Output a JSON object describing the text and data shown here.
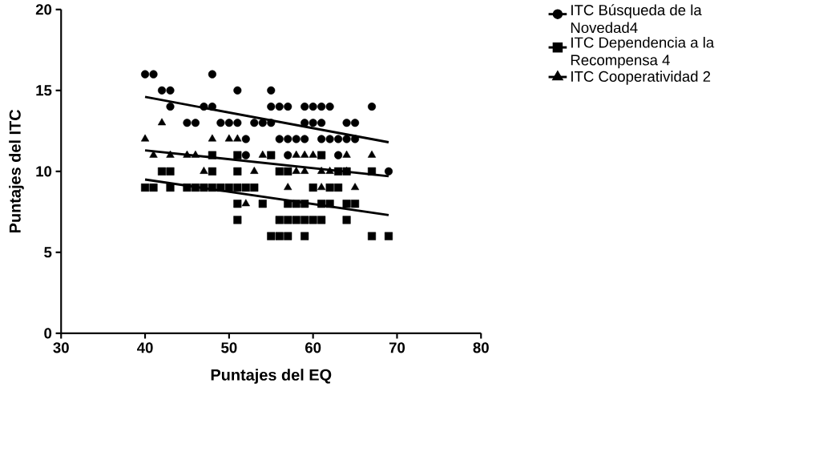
{
  "chart_data": {
    "type": "scatter",
    "xlabel": "Puntajes del EQ",
    "ylabel": "Puntajes del ITC",
    "xlim": [
      30,
      80
    ],
    "ylim": [
      0,
      20
    ],
    "xticks": [
      30,
      40,
      50,
      60,
      70,
      80
    ],
    "yticks": [
      0,
      5,
      10,
      15,
      20
    ],
    "grid": false,
    "legend": "right",
    "series": [
      {
        "name": "ITC Búsqueda de la Novedad4",
        "marker": "circle",
        "color": "#000000",
        "x": [
          40,
          41,
          48,
          42,
          43,
          51,
          55,
          43,
          47,
          48,
          55,
          56,
          57,
          59,
          60,
          61,
          62,
          67,
          45,
          46,
          49,
          50,
          51,
          53,
          54,
          55,
          59,
          60,
          61,
          64,
          65,
          52,
          56,
          57,
          58,
          59,
          61,
          62,
          63,
          64,
          65,
          52,
          57,
          63,
          69
        ],
        "values": [
          16,
          16,
          16,
          15,
          15,
          15,
          15,
          14,
          14,
          14,
          14,
          14,
          14,
          14,
          14,
          14,
          14,
          14,
          13,
          13,
          13,
          13,
          13,
          13,
          13,
          13,
          13,
          13,
          13,
          13,
          13,
          12,
          12,
          12,
          12,
          12,
          12,
          12,
          12,
          12,
          12,
          11,
          11,
          11,
          10
        ]
      },
      {
        "name": "ITC Dependencia a la Recompensa 4",
        "marker": "square",
        "color": "#000000",
        "x": [
          48,
          51,
          55,
          61,
          42,
          43,
          48,
          51,
          56,
          57,
          63,
          64,
          67,
          40,
          41,
          43,
          45,
          46,
          47,
          48,
          49,
          50,
          51,
          52,
          53,
          60,
          62,
          63,
          51,
          54,
          57,
          58,
          59,
          61,
          62,
          64,
          65,
          51,
          56,
          57,
          58,
          59,
          60,
          61,
          64,
          55,
          56,
          57,
          59,
          67,
          69
        ],
        "values": [
          11,
          11,
          11,
          11,
          10,
          10,
          10,
          10,
          10,
          10,
          10,
          10,
          10,
          9,
          9,
          9,
          9,
          9,
          9,
          9,
          9,
          9,
          9,
          9,
          9,
          9,
          9,
          9,
          8,
          8,
          8,
          8,
          8,
          8,
          8,
          8,
          8,
          7,
          7,
          7,
          7,
          7,
          7,
          7,
          7,
          6,
          6,
          6,
          6,
          6,
          6
        ]
      },
      {
        "name": "ITC Cooperatividad 2",
        "marker": "triangle",
        "color": "#000000",
        "x": [
          42,
          40,
          48,
          50,
          51,
          41,
          43,
          45,
          46,
          54,
          58,
          59,
          60,
          64,
          67,
          47,
          53,
          58,
          59,
          61,
          62,
          64,
          57,
          61,
          65,
          52
        ],
        "values": [
          13,
          12,
          12,
          12,
          12,
          11,
          11,
          11,
          11,
          11,
          11,
          11,
          11,
          11,
          11,
          10,
          10,
          10,
          10,
          10,
          10,
          10,
          9,
          9,
          9,
          8
        ]
      },
      {
        "type": "line",
        "marker": "none",
        "color": "#000000",
        "x": [
          40,
          69
        ],
        "values": [
          14.6,
          11.8
        ]
      },
      {
        "type": "line",
        "marker": "none",
        "color": "#000000",
        "x": [
          40,
          69
        ],
        "values": [
          9.5,
          7.3
        ]
      },
      {
        "type": "line",
        "marker": "none",
        "color": "#000000",
        "x": [
          40,
          69
        ],
        "values": [
          11.3,
          9.7
        ]
      }
    ]
  }
}
